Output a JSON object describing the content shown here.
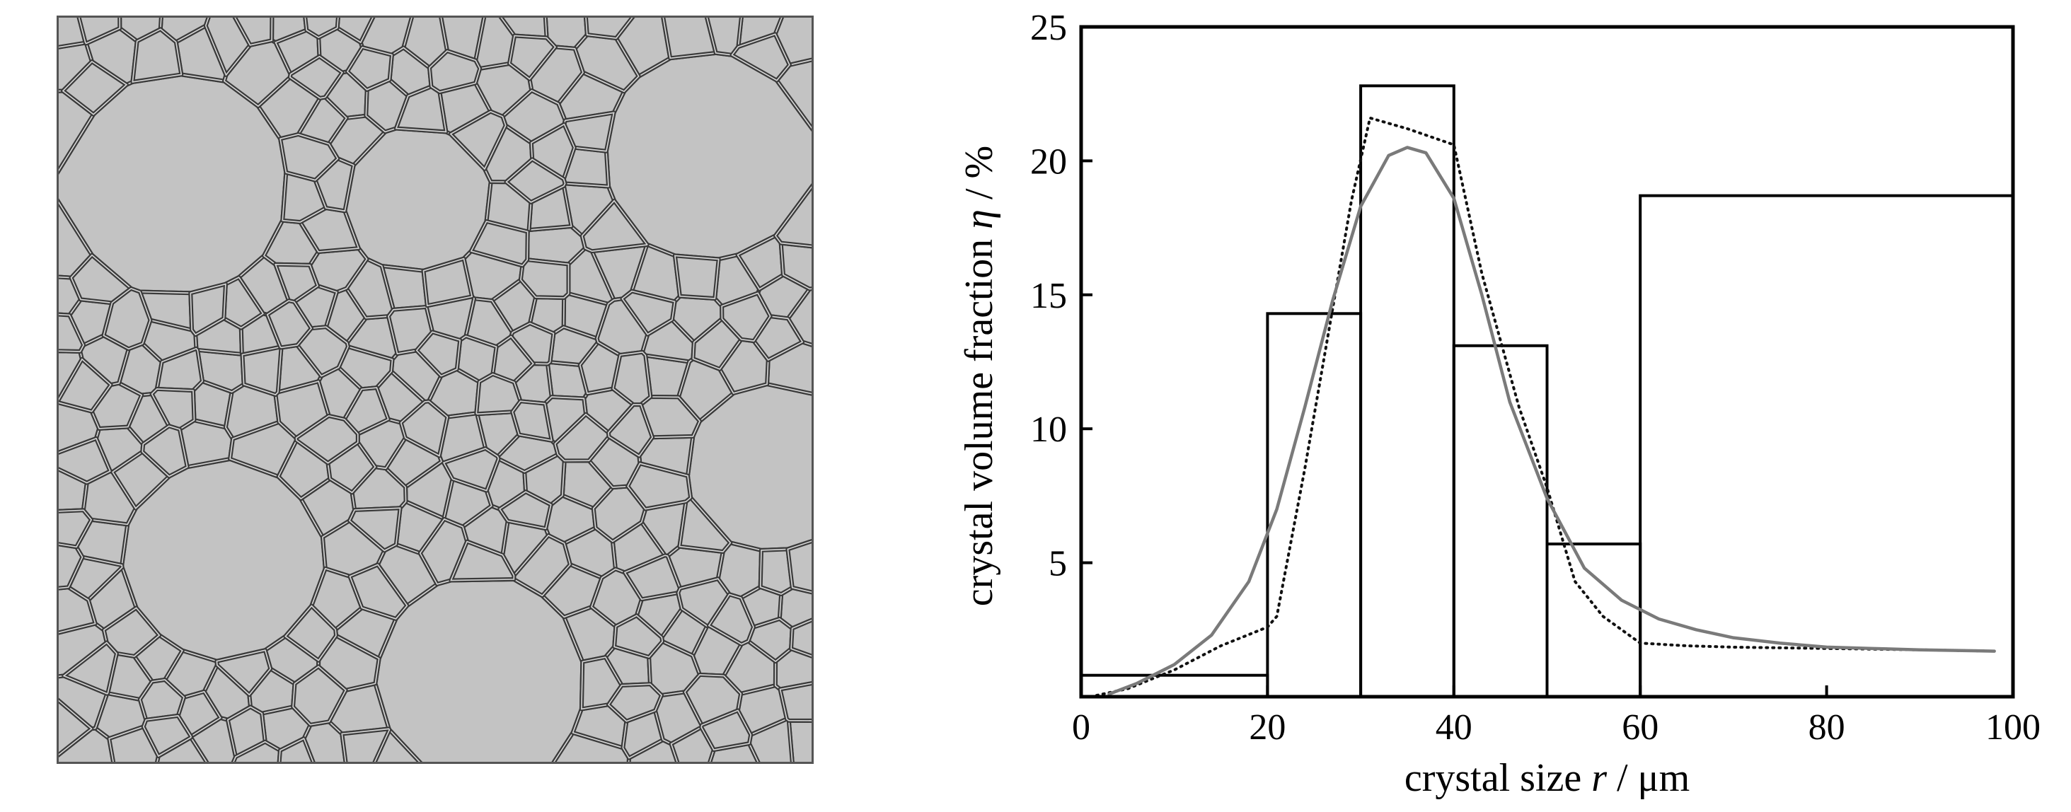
{
  "micrograph": {
    "description_icon": "polycrystalline-grain-structure"
  },
  "chart_data": {
    "type": "bar",
    "title": "",
    "xlabel": {
      "prefix": "crystal size ",
      "var": "r",
      "suffix": " / μm"
    },
    "ylabel": {
      "prefix": "crystal volume fraction ",
      "var": "η",
      "suffix": " / %"
    },
    "xlim": [
      0,
      100
    ],
    "ylim": [
      0,
      25
    ],
    "x_ticks": [
      "0",
      "20",
      "40",
      "60",
      "80",
      "100"
    ],
    "x_tick_values": [
      0,
      20,
      40,
      60,
      80,
      100
    ],
    "y_ticks": [
      "5",
      "10",
      "15",
      "20",
      "25"
    ],
    "y_tick_values": [
      5,
      10,
      15,
      20,
      25
    ],
    "grid": false,
    "bins": [
      {
        "x0": 0,
        "x1": 20,
        "value": 0.8
      },
      {
        "x0": 20,
        "x1": 30,
        "value": 14.3
      },
      {
        "x0": 30,
        "x1": 40,
        "value": 22.8
      },
      {
        "x0": 40,
        "x1": 50,
        "value": 13.1
      },
      {
        "x0": 50,
        "x1": 60,
        "value": 5.7
      },
      {
        "x0": 60,
        "x1": 100,
        "value": 18.7
      }
    ],
    "series": [
      {
        "style": "dotted",
        "color": "#111111",
        "x": [
          1,
          5,
          10,
          15,
          20,
          21,
          24,
          27,
          29,
          31,
          35,
          40,
          43,
          47,
          50,
          53,
          56,
          60,
          65,
          70,
          80,
          90,
          98
        ],
        "y": [
          0.0,
          0.3,
          1.0,
          1.9,
          2.6,
          3.0,
          8.5,
          14.5,
          18.5,
          21.6,
          21.2,
          20.6,
          15.8,
          10.8,
          7.8,
          4.3,
          3.0,
          2.0,
          1.9,
          1.85,
          1.8,
          1.75,
          1.7
        ]
      },
      {
        "style": "solid",
        "color": "#7a7a7a",
        "x": [
          3,
          6,
          10,
          14,
          18,
          21,
          24,
          27,
          30,
          33,
          35,
          37,
          40,
          43,
          46,
          50,
          54,
          58,
          62,
          66,
          70,
          75,
          80,
          85,
          90,
          98
        ],
        "y": [
          0.1,
          0.5,
          1.2,
          2.3,
          4.3,
          7.0,
          10.8,
          14.8,
          18.3,
          20.2,
          20.5,
          20.3,
          18.6,
          15.0,
          11.0,
          7.4,
          4.8,
          3.6,
          2.9,
          2.5,
          2.2,
          2.0,
          1.85,
          1.8,
          1.75,
          1.7
        ]
      }
    ]
  }
}
